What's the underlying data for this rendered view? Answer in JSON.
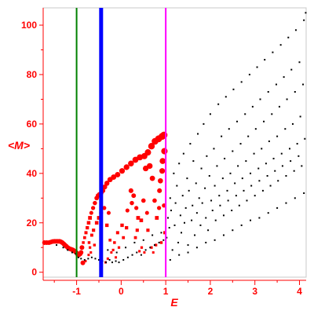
{
  "chart_data": {
    "type": "scatter",
    "title": "",
    "xlabel": "E",
    "ylabel": "<M>",
    "xlim": [
      -1.75,
      4.15
    ],
    "ylim": [
      -2,
      107
    ],
    "grid": false,
    "legend": "none",
    "x_ticks": [
      -1,
      0,
      1,
      2,
      3,
      4
    ],
    "x_tick_labels": [
      "-1",
      "0",
      "1",
      "2",
      "3",
      "4"
    ],
    "y_ticks": [
      0,
      20,
      40,
      60,
      80,
      100
    ],
    "y_tick_labels": [
      "0",
      "20",
      "40",
      "60",
      "80",
      "100"
    ],
    "colors": {
      "axes": "#ff0000",
      "frame": "#c8c8c8"
    },
    "vertical_lines": [
      {
        "x": -1.0,
        "color": "#008000",
        "width": 2
      },
      {
        "x": -0.45,
        "color": "#0000ff",
        "width": 5
      },
      {
        "x": 1.0,
        "color": "#ff00ff",
        "width": 2
      }
    ],
    "series": [
      {
        "color": "#ff0000",
        "size": "varies",
        "points": [
          [
            -1.72,
            12
          ],
          [
            -1.67,
            12
          ],
          [
            -1.62,
            12
          ],
          [
            -1.58,
            12.2
          ],
          [
            -1.54,
            12.4
          ],
          [
            -1.5,
            12.5
          ],
          [
            -1.46,
            12.5
          ],
          [
            -1.42,
            12.5
          ],
          [
            -1.38,
            12.5
          ],
          [
            -1.35,
            12.3
          ],
          [
            -1.32,
            12
          ],
          [
            -1.29,
            11.5
          ],
          [
            -1.26,
            11
          ],
          [
            -1.23,
            10.5
          ],
          [
            -1.2,
            10
          ],
          [
            -1.17,
            9.6
          ],
          [
            -1.14,
            9.4
          ],
          [
            -1.11,
            9.2
          ],
          [
            -1.08,
            9
          ],
          [
            -1.05,
            8.6
          ],
          [
            -1.02,
            8.2
          ],
          [
            -1.0,
            7.8
          ],
          [
            -0.98,
            7.3
          ],
          [
            -0.95,
            7
          ],
          [
            -0.92,
            7.4
          ],
          [
            -0.9,
            8
          ],
          [
            -0.88,
            10
          ],
          [
            -0.85,
            12
          ],
          [
            -0.82,
            14
          ],
          [
            -0.79,
            16
          ],
          [
            -0.76,
            18
          ],
          [
            -0.73,
            20
          ],
          [
            -0.7,
            22
          ],
          [
            -0.67,
            24
          ],
          [
            -0.63,
            26
          ],
          [
            -0.59,
            28
          ],
          [
            -0.55,
            30
          ],
          [
            -0.52,
            31
          ],
          [
            -0.49,
            31.5
          ],
          [
            -0.45,
            32
          ],
          [
            -0.41,
            33
          ],
          [
            -0.37,
            34.5
          ],
          [
            -0.32,
            36
          ],
          [
            -0.25,
            37.5
          ],
          [
            -0.17,
            38.5
          ],
          [
            -0.08,
            39.5
          ],
          [
            0.02,
            41
          ],
          [
            0.12,
            42.5
          ],
          [
            0.22,
            44
          ],
          [
            0.32,
            45.5
          ],
          [
            0.42,
            46.5
          ],
          [
            0.52,
            47
          ],
          [
            0.6,
            48.5
          ],
          [
            0.68,
            51
          ],
          [
            0.76,
            53
          ],
          [
            0.84,
            54
          ],
          [
            0.92,
            55
          ],
          [
            0.96,
            55.5
          ],
          [
            -0.86,
            3.8
          ],
          [
            -0.8,
            4.5
          ],
          [
            -0.73,
            7
          ],
          [
            -0.72,
            12
          ],
          [
            -0.7,
            10
          ],
          [
            -0.68,
            8
          ],
          [
            -0.66,
            15
          ],
          [
            -0.62,
            17
          ],
          [
            -0.6,
            11
          ],
          [
            -0.55,
            20
          ],
          [
            -0.5,
            22
          ],
          [
            -0.45,
            24
          ],
          [
            -0.38,
            26
          ],
          [
            -0.32,
            19
          ],
          [
            -0.28,
            24
          ],
          [
            -0.25,
            13
          ],
          [
            -0.18,
            9
          ],
          [
            -0.12,
            6
          ],
          [
            -0.05,
            10
          ],
          [
            0.05,
            14
          ],
          [
            0.12,
            18
          ],
          [
            0.22,
            33
          ],
          [
            0.28,
            31
          ],
          [
            0.34,
            26
          ],
          [
            0.38,
            22
          ],
          [
            0.41,
            8.5
          ],
          [
            0.46,
            10
          ],
          [
            0.5,
            29
          ],
          [
            0.52,
            8
          ],
          [
            0.55,
            42
          ],
          [
            0.58,
            24
          ],
          [
            0.64,
            43
          ],
          [
            0.7,
            38
          ],
          [
            0.75,
            29
          ],
          [
            0.78,
            11
          ],
          [
            0.8,
            22
          ],
          [
            0.86,
            33
          ],
          [
            0.9,
            12
          ],
          [
            0.92,
            41
          ],
          [
            0.96,
            27
          ],
          [
            0.98,
            16
          ],
          [
            -0.35,
            4
          ],
          [
            -0.3,
            5.5
          ],
          [
            -0.22,
            8
          ],
          [
            -0.15,
            12
          ],
          [
            -0.08,
            16
          ],
          [
            0.02,
            19
          ],
          [
            0.14,
            25
          ],
          [
            0.24,
            28
          ],
          [
            0.32,
            14
          ],
          [
            0.36,
            17
          ],
          [
            0.45,
            21
          ],
          [
            0.6,
            17
          ],
          [
            0.68,
            10
          ],
          [
            0.72,
            8
          ],
          [
            0.85,
            26
          ],
          [
            0.88,
            37
          ],
          [
            0.93,
            45
          ],
          [
            0.97,
            49
          ]
        ]
      },
      {
        "color": "#000000",
        "size": 2,
        "points": [
          [
            -1.45,
            11
          ],
          [
            -1.3,
            10
          ],
          [
            -1.2,
            9
          ],
          [
            -1.1,
            8
          ],
          [
            -1.02,
            7.5
          ],
          [
            -0.96,
            6
          ],
          [
            -0.9,
            5.5
          ],
          [
            -0.82,
            5
          ],
          [
            -0.74,
            5.5
          ],
          [
            -0.66,
            6
          ],
          [
            -0.58,
            5.5
          ],
          [
            -0.5,
            5
          ],
          [
            -0.42,
            4.5
          ],
          [
            -0.34,
            4
          ],
          [
            -0.26,
            5
          ],
          [
            -0.2,
            4
          ],
          [
            -0.12,
            4.5
          ],
          [
            -0.05,
            4
          ],
          [
            0.05,
            5
          ],
          [
            0.15,
            6
          ],
          [
            0.25,
            7
          ],
          [
            0.35,
            8
          ],
          [
            0.45,
            7
          ],
          [
            0.55,
            9
          ],
          [
            0.65,
            10
          ],
          [
            0.75,
            11
          ],
          [
            0.85,
            12
          ],
          [
            0.95,
            13
          ],
          [
            -0.3,
            9
          ],
          [
            -0.1,
            8
          ],
          [
            0.1,
            10
          ],
          [
            0.3,
            12
          ],
          [
            0.5,
            13
          ],
          [
            0.7,
            15
          ],
          [
            0.9,
            16
          ],
          [
            1.02,
            14
          ],
          [
            1.05,
            22
          ],
          [
            1.08,
            18
          ],
          [
            1.1,
            30
          ],
          [
            1.12,
            25
          ],
          [
            1.15,
            9
          ],
          [
            1.18,
            40
          ],
          [
            1.2,
            19
          ],
          [
            1.22,
            28
          ],
          [
            1.25,
            35
          ],
          [
            1.28,
            12
          ],
          [
            1.3,
            44
          ],
          [
            1.33,
            23
          ],
          [
            1.35,
            16
          ],
          [
            1.38,
            31
          ],
          [
            1.4,
            48
          ],
          [
            1.42,
            20
          ],
          [
            1.45,
            26
          ],
          [
            1.48,
            38
          ],
          [
            1.5,
            11
          ],
          [
            1.52,
            33
          ],
          [
            1.55,
            52
          ],
          [
            1.58,
            21
          ],
          [
            1.6,
            27
          ],
          [
            1.62,
            45
          ],
          [
            1.65,
            15
          ],
          [
            1.68,
            36
          ],
          [
            1.7,
            24
          ],
          [
            1.72,
            56
          ],
          [
            1.75,
            30
          ],
          [
            1.78,
            19
          ],
          [
            1.8,
            42
          ],
          [
            1.82,
            28
          ],
          [
            1.85,
            60
          ],
          [
            1.88,
            34
          ],
          [
            1.9,
            22
          ],
          [
            1.92,
            47
          ],
          [
            1.95,
            17
          ],
          [
            1.98,
            39
          ],
          [
            2.0,
            64
          ],
          [
            2.02,
            29
          ],
          [
            2.05,
            25
          ],
          [
            2.08,
            50
          ],
          [
            2.1,
            35
          ],
          [
            2.12,
            21
          ],
          [
            2.15,
            43
          ],
          [
            2.18,
            68
          ],
          [
            2.2,
            31
          ],
          [
            2.22,
            27
          ],
          [
            2.25,
            55
          ],
          [
            2.28,
            38
          ],
          [
            2.3,
            23
          ],
          [
            2.32,
            46
          ],
          [
            2.35,
            71
          ],
          [
            2.38,
            33
          ],
          [
            2.4,
            29
          ],
          [
            2.42,
            58
          ],
          [
            2.45,
            40
          ],
          [
            2.48,
            25
          ],
          [
            2.5,
            49
          ],
          [
            2.52,
            74
          ],
          [
            2.55,
            36
          ],
          [
            2.58,
            31
          ],
          [
            2.6,
            61
          ],
          [
            2.62,
            43
          ],
          [
            2.65,
            27
          ],
          [
            2.68,
            52
          ],
          [
            2.7,
            77
          ],
          [
            2.72,
            38
          ],
          [
            2.75,
            33
          ],
          [
            2.78,
            64
          ],
          [
            2.8,
            45
          ],
          [
            2.82,
            29
          ],
          [
            2.85,
            55
          ],
          [
            2.88,
            80
          ],
          [
            2.9,
            40
          ],
          [
            2.92,
            35
          ],
          [
            2.95,
            67
          ],
          [
            2.98,
            48
          ],
          [
            3.0,
            31
          ],
          [
            3.02,
            58
          ],
          [
            3.05,
            83
          ],
          [
            3.08,
            42
          ],
          [
            3.1,
            37
          ],
          [
            3.12,
            70
          ],
          [
            3.15,
            50
          ],
          [
            3.18,
            33
          ],
          [
            3.2,
            61
          ],
          [
            3.22,
            86
          ],
          [
            3.25,
            44
          ],
          [
            3.28,
            39
          ],
          [
            3.3,
            73
          ],
          [
            3.32,
            53
          ],
          [
            3.35,
            35
          ],
          [
            3.38,
            64
          ],
          [
            3.4,
            89
          ],
          [
            3.42,
            46
          ],
          [
            3.45,
            41
          ],
          [
            3.48,
            76
          ],
          [
            3.5,
            55
          ],
          [
            3.52,
            37
          ],
          [
            3.55,
            67
          ],
          [
            3.58,
            92
          ],
          [
            3.6,
            48
          ],
          [
            3.62,
            43
          ],
          [
            3.65,
            79
          ],
          [
            3.68,
            58
          ],
          [
            3.7,
            39
          ],
          [
            3.72,
            70
          ],
          [
            3.75,
            95
          ],
          [
            3.78,
            50
          ],
          [
            3.8,
            45
          ],
          [
            3.82,
            82
          ],
          [
            3.85,
            60
          ],
          [
            3.88,
            41
          ],
          [
            3.9,
            73
          ],
          [
            3.92,
            98
          ],
          [
            3.95,
            52
          ],
          [
            3.98,
            47
          ],
          [
            4.0,
            85
          ],
          [
            4.02,
            63
          ],
          [
            4.05,
            43
          ],
          [
            4.08,
            76
          ],
          [
            4.1,
            102
          ],
          [
            4.12,
            54
          ],
          [
            4.14,
            105
          ],
          [
            1.1,
            5
          ],
          [
            1.3,
            7
          ],
          [
            1.5,
            8
          ],
          [
            1.7,
            10
          ],
          [
            1.9,
            12
          ],
          [
            2.1,
            13
          ],
          [
            2.3,
            15
          ],
          [
            2.5,
            17
          ],
          [
            2.7,
            19
          ],
          [
            2.9,
            21
          ],
          [
            3.1,
            22
          ],
          [
            3.3,
            24
          ],
          [
            3.5,
            26
          ],
          [
            3.7,
            28
          ],
          [
            3.9,
            30
          ],
          [
            4.1,
            32
          ]
        ]
      }
    ]
  }
}
